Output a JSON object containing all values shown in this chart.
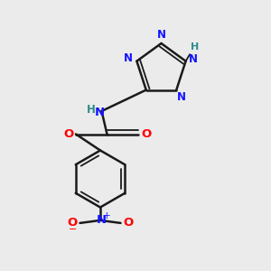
{
  "bg_color": "#ebebeb",
  "bond_color": "#1a1a1a",
  "N_color": "#1414ff",
  "O_color": "#ff0000",
  "H_color": "#2e8b8b",
  "line_width": 1.8,
  "figsize": [
    3.0,
    3.0
  ],
  "dpi": 100,
  "xlim": [
    0,
    1
  ],
  "ylim": [
    0,
    1
  ]
}
